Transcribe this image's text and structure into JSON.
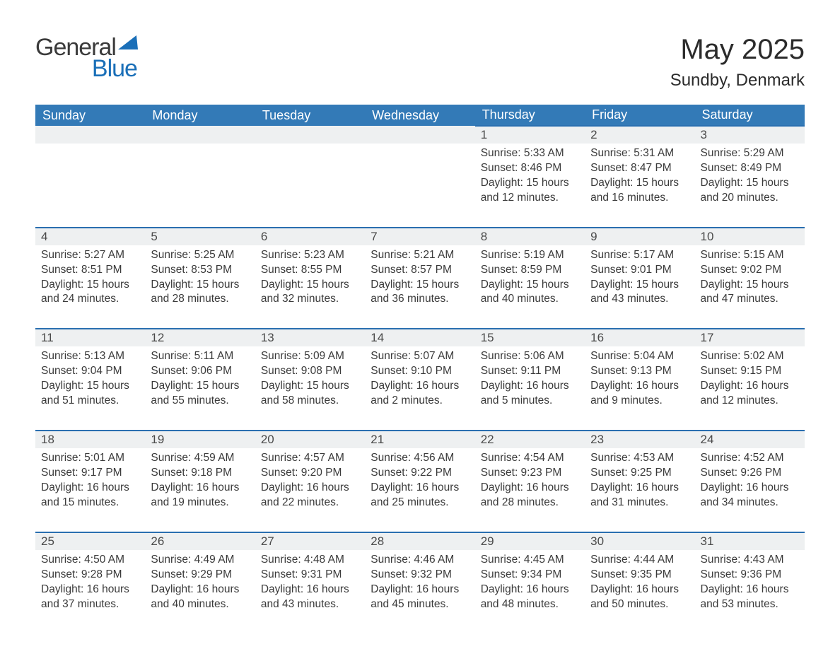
{
  "colors": {
    "header_bg": "#337ab7",
    "header_text": "#ffffff",
    "daynum_bg": "#eef0f1",
    "daynum_border": "#2a6fb0",
    "body_text": "#3a3a3a",
    "page_bg": "#ffffff",
    "logo_blue": "#1a6fb8",
    "logo_gray": "#3a3a3a"
  },
  "logo": {
    "line1": "General",
    "line2": "Blue"
  },
  "title": "May 2025",
  "location": "Sundby, Denmark",
  "weekdays": [
    "Sunday",
    "Monday",
    "Tuesday",
    "Wednesday",
    "Thursday",
    "Friday",
    "Saturday"
  ],
  "weeks": [
    [
      null,
      null,
      null,
      null,
      {
        "n": "1",
        "sunrise": "Sunrise: 5:33 AM",
        "sunset": "Sunset: 8:46 PM",
        "day1": "Daylight: 15 hours",
        "day2": "and 12 minutes."
      },
      {
        "n": "2",
        "sunrise": "Sunrise: 5:31 AM",
        "sunset": "Sunset: 8:47 PM",
        "day1": "Daylight: 15 hours",
        "day2": "and 16 minutes."
      },
      {
        "n": "3",
        "sunrise": "Sunrise: 5:29 AM",
        "sunset": "Sunset: 8:49 PM",
        "day1": "Daylight: 15 hours",
        "day2": "and 20 minutes."
      }
    ],
    [
      {
        "n": "4",
        "sunrise": "Sunrise: 5:27 AM",
        "sunset": "Sunset: 8:51 PM",
        "day1": "Daylight: 15 hours",
        "day2": "and 24 minutes."
      },
      {
        "n": "5",
        "sunrise": "Sunrise: 5:25 AM",
        "sunset": "Sunset: 8:53 PM",
        "day1": "Daylight: 15 hours",
        "day2": "and 28 minutes."
      },
      {
        "n": "6",
        "sunrise": "Sunrise: 5:23 AM",
        "sunset": "Sunset: 8:55 PM",
        "day1": "Daylight: 15 hours",
        "day2": "and 32 minutes."
      },
      {
        "n": "7",
        "sunrise": "Sunrise: 5:21 AM",
        "sunset": "Sunset: 8:57 PM",
        "day1": "Daylight: 15 hours",
        "day2": "and 36 minutes."
      },
      {
        "n": "8",
        "sunrise": "Sunrise: 5:19 AM",
        "sunset": "Sunset: 8:59 PM",
        "day1": "Daylight: 15 hours",
        "day2": "and 40 minutes."
      },
      {
        "n": "9",
        "sunrise": "Sunrise: 5:17 AM",
        "sunset": "Sunset: 9:01 PM",
        "day1": "Daylight: 15 hours",
        "day2": "and 43 minutes."
      },
      {
        "n": "10",
        "sunrise": "Sunrise: 5:15 AM",
        "sunset": "Sunset: 9:02 PM",
        "day1": "Daylight: 15 hours",
        "day2": "and 47 minutes."
      }
    ],
    [
      {
        "n": "11",
        "sunrise": "Sunrise: 5:13 AM",
        "sunset": "Sunset: 9:04 PM",
        "day1": "Daylight: 15 hours",
        "day2": "and 51 minutes."
      },
      {
        "n": "12",
        "sunrise": "Sunrise: 5:11 AM",
        "sunset": "Sunset: 9:06 PM",
        "day1": "Daylight: 15 hours",
        "day2": "and 55 minutes."
      },
      {
        "n": "13",
        "sunrise": "Sunrise: 5:09 AM",
        "sunset": "Sunset: 9:08 PM",
        "day1": "Daylight: 15 hours",
        "day2": "and 58 minutes."
      },
      {
        "n": "14",
        "sunrise": "Sunrise: 5:07 AM",
        "sunset": "Sunset: 9:10 PM",
        "day1": "Daylight: 16 hours",
        "day2": "and 2 minutes."
      },
      {
        "n": "15",
        "sunrise": "Sunrise: 5:06 AM",
        "sunset": "Sunset: 9:11 PM",
        "day1": "Daylight: 16 hours",
        "day2": "and 5 minutes."
      },
      {
        "n": "16",
        "sunrise": "Sunrise: 5:04 AM",
        "sunset": "Sunset: 9:13 PM",
        "day1": "Daylight: 16 hours",
        "day2": "and 9 minutes."
      },
      {
        "n": "17",
        "sunrise": "Sunrise: 5:02 AM",
        "sunset": "Sunset: 9:15 PM",
        "day1": "Daylight: 16 hours",
        "day2": "and 12 minutes."
      }
    ],
    [
      {
        "n": "18",
        "sunrise": "Sunrise: 5:01 AM",
        "sunset": "Sunset: 9:17 PM",
        "day1": "Daylight: 16 hours",
        "day2": "and 15 minutes."
      },
      {
        "n": "19",
        "sunrise": "Sunrise: 4:59 AM",
        "sunset": "Sunset: 9:18 PM",
        "day1": "Daylight: 16 hours",
        "day2": "and 19 minutes."
      },
      {
        "n": "20",
        "sunrise": "Sunrise: 4:57 AM",
        "sunset": "Sunset: 9:20 PM",
        "day1": "Daylight: 16 hours",
        "day2": "and 22 minutes."
      },
      {
        "n": "21",
        "sunrise": "Sunrise: 4:56 AM",
        "sunset": "Sunset: 9:22 PM",
        "day1": "Daylight: 16 hours",
        "day2": "and 25 minutes."
      },
      {
        "n": "22",
        "sunrise": "Sunrise: 4:54 AM",
        "sunset": "Sunset: 9:23 PM",
        "day1": "Daylight: 16 hours",
        "day2": "and 28 minutes."
      },
      {
        "n": "23",
        "sunrise": "Sunrise: 4:53 AM",
        "sunset": "Sunset: 9:25 PM",
        "day1": "Daylight: 16 hours",
        "day2": "and 31 minutes."
      },
      {
        "n": "24",
        "sunrise": "Sunrise: 4:52 AM",
        "sunset": "Sunset: 9:26 PM",
        "day1": "Daylight: 16 hours",
        "day2": "and 34 minutes."
      }
    ],
    [
      {
        "n": "25",
        "sunrise": "Sunrise: 4:50 AM",
        "sunset": "Sunset: 9:28 PM",
        "day1": "Daylight: 16 hours",
        "day2": "and 37 minutes."
      },
      {
        "n": "26",
        "sunrise": "Sunrise: 4:49 AM",
        "sunset": "Sunset: 9:29 PM",
        "day1": "Daylight: 16 hours",
        "day2": "and 40 minutes."
      },
      {
        "n": "27",
        "sunrise": "Sunrise: 4:48 AM",
        "sunset": "Sunset: 9:31 PM",
        "day1": "Daylight: 16 hours",
        "day2": "and 43 minutes."
      },
      {
        "n": "28",
        "sunrise": "Sunrise: 4:46 AM",
        "sunset": "Sunset: 9:32 PM",
        "day1": "Daylight: 16 hours",
        "day2": "and 45 minutes."
      },
      {
        "n": "29",
        "sunrise": "Sunrise: 4:45 AM",
        "sunset": "Sunset: 9:34 PM",
        "day1": "Daylight: 16 hours",
        "day2": "and 48 minutes."
      },
      {
        "n": "30",
        "sunrise": "Sunrise: 4:44 AM",
        "sunset": "Sunset: 9:35 PM",
        "day1": "Daylight: 16 hours",
        "day2": "and 50 minutes."
      },
      {
        "n": "31",
        "sunrise": "Sunrise: 4:43 AM",
        "sunset": "Sunset: 9:36 PM",
        "day1": "Daylight: 16 hours",
        "day2": "and 53 minutes."
      }
    ]
  ]
}
